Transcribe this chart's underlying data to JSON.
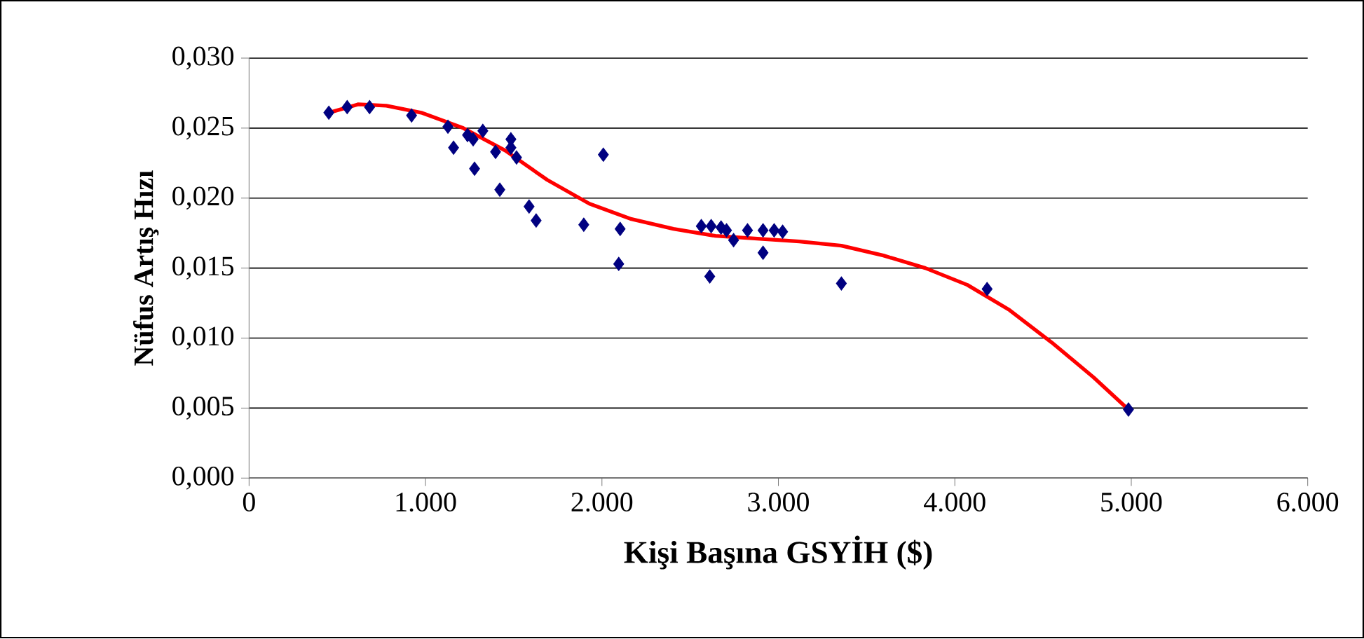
{
  "chart_data": {
    "type": "scatter",
    "xlabel": "Kişi Başına GSYİH ($)",
    "ylabel": "Nüfus Artış Hızı",
    "xlim": [
      0,
      6000
    ],
    "ylim": [
      0,
      0.03
    ],
    "xticks": [
      {
        "value": 0,
        "label": "0"
      },
      {
        "value": 1000,
        "label": "1.000"
      },
      {
        "value": 2000,
        "label": "2.000"
      },
      {
        "value": 3000,
        "label": "3.000"
      },
      {
        "value": 4000,
        "label": "4.000"
      },
      {
        "value": 5000,
        "label": "5.000"
      },
      {
        "value": 6000,
        "label": "6.000"
      }
    ],
    "yticks": [
      {
        "value": 0,
        "label": "0,000"
      },
      {
        "value": 0.005,
        "label": "0,005"
      },
      {
        "value": 0.01,
        "label": "0,010"
      },
      {
        "value": 0.015,
        "label": "0,015"
      },
      {
        "value": 0.02,
        "label": "0,020"
      },
      {
        "value": 0.025,
        "label": "0,025"
      },
      {
        "value": 0.03,
        "label": "0,030"
      }
    ],
    "grid": "y",
    "series": [
      {
        "color": "#000080",
        "marker": "diamond",
        "x": [
          452,
          556,
          683,
          921,
          1127,
          1159,
          1238,
          1270,
          1325,
          1278,
          1397,
          1421,
          1484,
          1484,
          1516,
          1587,
          1627,
          1897,
          2008,
          2103,
          2095,
          2563,
          2619,
          2675,
          2706,
          2746,
          2611,
          2825,
          2913,
          2913,
          2976,
          3024,
          3357,
          4183,
          4984
        ],
        "values": [
          0.0261,
          0.0265,
          0.0265,
          0.0259,
          0.0251,
          0.0236,
          0.0245,
          0.0242,
          0.0248,
          0.0221,
          0.0233,
          0.0206,
          0.0242,
          0.0236,
          0.0229,
          0.0194,
          0.0184,
          0.0181,
          0.0231,
          0.0178,
          0.0153,
          0.018,
          0.018,
          0.0179,
          0.0177,
          0.017,
          0.0144,
          0.0177,
          0.0177,
          0.0161,
          0.0177,
          0.0176,
          0.0139,
          0.0135,
          0.0049
        ]
      },
      {
        "type": "line",
        "color": "#ff0000",
        "marker": "none",
        "line_style": "solid",
        "x": [
          452,
          619,
          778,
          976,
          1214,
          1452,
          1690,
          1929,
          2167,
          2405,
          2643,
          2881,
          3119,
          3357,
          3595,
          3833,
          4071,
          4310,
          4548,
          4786,
          4984
        ],
        "values": [
          0.0261,
          0.0267,
          0.0266,
          0.0261,
          0.025,
          0.0234,
          0.0213,
          0.0196,
          0.0185,
          0.0178,
          0.0173,
          0.0171,
          0.0169,
          0.0166,
          0.0159,
          0.015,
          0.0138,
          0.012,
          0.0097,
          0.0072,
          0.0049
        ]
      }
    ]
  }
}
